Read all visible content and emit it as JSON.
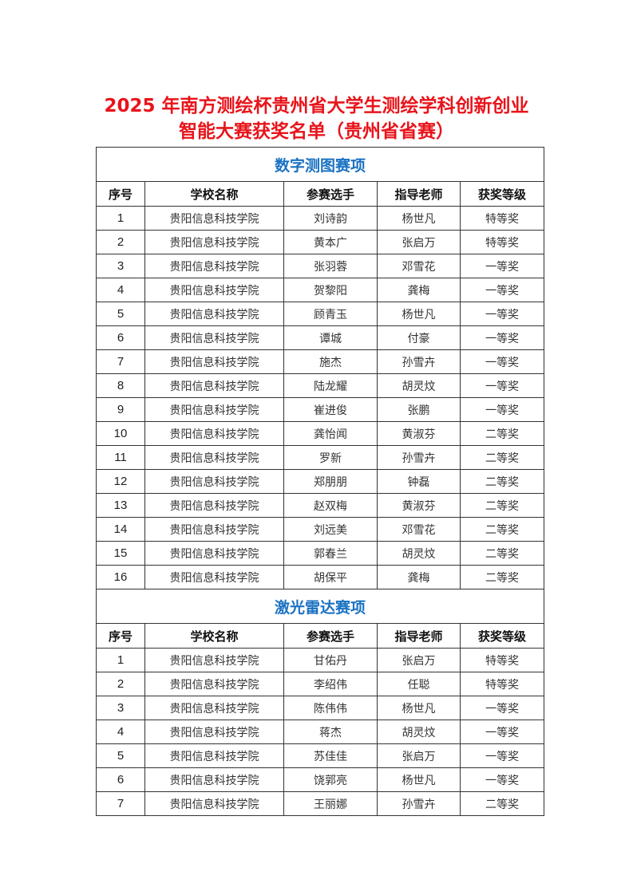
{
  "title": {
    "line1": "2025 年南方测绘杯贵州省大学生测绘学科创新创业",
    "line2": "智能大赛获奖名单（贵州省省赛）"
  },
  "colors": {
    "title": "#e8141b",
    "section": "#1a72c2"
  },
  "columns": [
    "序号",
    "学校名称",
    "参赛选手",
    "指导老师",
    "获奖等级"
  ],
  "sections": [
    {
      "name": "数字测图赛项",
      "rows": [
        [
          "1",
          "贵阳信息科技学院",
          "刘诗韵",
          "杨世凡",
          "特等奖"
        ],
        [
          "2",
          "贵阳信息科技学院",
          "黄本广",
          "张启万",
          "特等奖"
        ],
        [
          "3",
          "贵阳信息科技学院",
          "张羽蓉",
          "邓雪花",
          "一等奖"
        ],
        [
          "4",
          "贵阳信息科技学院",
          "贺黎阳",
          "龚梅",
          "一等奖"
        ],
        [
          "5",
          "贵阳信息科技学院",
          "顾青玉",
          "杨世凡",
          "一等奖"
        ],
        [
          "6",
          "贵阳信息科技学院",
          "谭城",
          "付豪",
          "一等奖"
        ],
        [
          "7",
          "贵阳信息科技学院",
          "施杰",
          "孙雪卉",
          "一等奖"
        ],
        [
          "8",
          "贵阳信息科技学院",
          "陆龙耀",
          "胡灵炆",
          "一等奖"
        ],
        [
          "9",
          "贵阳信息科技学院",
          "崔进俊",
          "张鹏",
          "一等奖"
        ],
        [
          "10",
          "贵阳信息科技学院",
          "龚怡闻",
          "黄淑芬",
          "二等奖"
        ],
        [
          "11",
          "贵阳信息科技学院",
          "罗新",
          "孙雪卉",
          "二等奖"
        ],
        [
          "12",
          "贵阳信息科技学院",
          "郑朋朋",
          "钟磊",
          "二等奖"
        ],
        [
          "13",
          "贵阳信息科技学院",
          "赵双梅",
          "黄淑芬",
          "二等奖"
        ],
        [
          "14",
          "贵阳信息科技学院",
          "刘远美",
          "邓雪花",
          "二等奖"
        ],
        [
          "15",
          "贵阳信息科技学院",
          "郭春兰",
          "胡灵炆",
          "二等奖"
        ],
        [
          "16",
          "贵阳信息科技学院",
          "胡保平",
          "龚梅",
          "二等奖"
        ]
      ]
    },
    {
      "name": "激光雷达赛项",
      "rows": [
        [
          "1",
          "贵阳信息科技学院",
          "甘佑丹",
          "张启万",
          "特等奖"
        ],
        [
          "2",
          "贵阳信息科技学院",
          "李绍伟",
          "任聪",
          "特等奖"
        ],
        [
          "3",
          "贵阳信息科技学院",
          "陈伟伟",
          "杨世凡",
          "一等奖"
        ],
        [
          "4",
          "贵阳信息科技学院",
          "蒋杰",
          "胡灵炆",
          "一等奖"
        ],
        [
          "5",
          "贵阳信息科技学院",
          "苏佳佳",
          "张启万",
          "一等奖"
        ],
        [
          "6",
          "贵阳信息科技学院",
          "饶郭亮",
          "杨世凡",
          "一等奖"
        ],
        [
          "7",
          "贵阳信息科技学院",
          "王丽娜",
          "孙雪卉",
          "二等奖"
        ]
      ]
    }
  ]
}
